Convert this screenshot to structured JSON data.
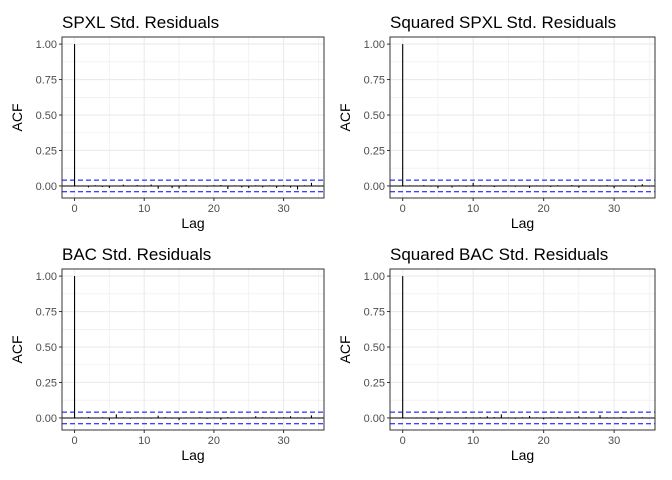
{
  "figure": {
    "type": "acf-grid",
    "panel_background": "#ffffff",
    "grid_color": "#ebebeb",
    "border_color": "#333333",
    "bar_color": "#000000",
    "ci_color": "#0000ff"
  },
  "chart_data": [
    {
      "type": "bar",
      "title": "SPXL Std. Residuals",
      "xlabel": "Lag",
      "ylabel": "ACF",
      "xlim": [
        -1.8,
        35.8
      ],
      "ylim": [
        -0.085,
        1.05
      ],
      "xticks": [
        0,
        10,
        20,
        30
      ],
      "yticks": [
        "0.00",
        "0.25",
        "0.50",
        "0.75",
        "1.00"
      ],
      "ci": [
        0.041,
        -0.041
      ],
      "grid": true,
      "x": [
        0,
        1,
        2,
        3,
        4,
        5,
        6,
        7,
        8,
        9,
        10,
        11,
        12,
        13,
        14,
        15,
        16,
        17,
        18,
        19,
        20,
        21,
        22,
        23,
        24,
        25,
        26,
        27,
        28,
        29,
        30,
        31,
        32,
        33,
        34
      ],
      "values": [
        1.0,
        -0.003,
        -0.01,
        0.005,
        -0.007,
        -0.014,
        0.002,
        0.009,
        -0.004,
        0.006,
        -0.005,
        0.01,
        -0.02,
        0.004,
        -0.015,
        -0.018,
        0.007,
        0.004,
        0.003,
        -0.006,
        0.005,
        0.006,
        -0.022,
        0.004,
        -0.01,
        -0.015,
        0.005,
        -0.01,
        0.004,
        -0.014,
        0.006,
        -0.012,
        -0.025,
        0.005,
        0.022
      ]
    },
    {
      "type": "bar",
      "title": "Squared SPXL Std. Residuals",
      "xlabel": "Lag",
      "ylabel": "ACF",
      "xlim": [
        -1.8,
        35.8
      ],
      "ylim": [
        -0.085,
        1.05
      ],
      "xticks": [
        0,
        10,
        20,
        30
      ],
      "yticks": [
        "0.00",
        "0.25",
        "0.50",
        "0.75",
        "1.00"
      ],
      "ci": [
        0.041,
        -0.041
      ],
      "grid": true,
      "x": [
        0,
        1,
        2,
        3,
        4,
        5,
        6,
        7,
        8,
        9,
        10,
        11,
        12,
        13,
        14,
        15,
        16,
        17,
        18,
        19,
        20,
        21,
        22,
        23,
        24,
        25,
        26,
        27,
        28,
        29,
        30,
        31,
        32,
        33,
        34
      ],
      "values": [
        1.0,
        0.004,
        0.003,
        0.006,
        -0.005,
        -0.016,
        0.002,
        -0.011,
        0.004,
        -0.006,
        0.022,
        0.005,
        0.003,
        -0.008,
        0.003,
        0.004,
        -0.006,
        0.002,
        -0.014,
        0.004,
        0.003,
        -0.007,
        0.005,
        -0.004,
        0.006,
        -0.013,
        0.003,
        0.004,
        -0.005,
        0.006,
        -0.016,
        0.004,
        0.003,
        -0.008,
        0.012
      ]
    },
    {
      "type": "bar",
      "title": "BAC Std. Residuals",
      "xlabel": "Lag",
      "ylabel": "ACF",
      "xlim": [
        -1.8,
        35.8
      ],
      "ylim": [
        -0.085,
        1.05
      ],
      "xticks": [
        0,
        10,
        20,
        30
      ],
      "yticks": [
        "0.00",
        "0.25",
        "0.50",
        "0.75",
        "1.00"
      ],
      "ci": [
        0.041,
        -0.041
      ],
      "grid": true,
      "x": [
        0,
        1,
        2,
        3,
        4,
        5,
        6,
        7,
        8,
        9,
        10,
        11,
        12,
        13,
        14,
        15,
        16,
        17,
        18,
        19,
        20,
        21,
        22,
        23,
        24,
        25,
        26,
        27,
        28,
        29,
        30,
        31,
        32,
        33,
        34
      ],
      "values": [
        1.0,
        0.004,
        0.006,
        -0.004,
        0.005,
        -0.018,
        0.025,
        0.005,
        -0.006,
        0.004,
        0.003,
        -0.005,
        0.016,
        0.006,
        -0.005,
        -0.016,
        0.004,
        0.003,
        0.005,
        -0.006,
        0.004,
        -0.013,
        0.006,
        0.004,
        -0.005,
        0.003,
        0.012,
        0.005,
        0.004,
        -0.006,
        0.005,
        0.012,
        0.004,
        -0.005,
        0.018
      ]
    },
    {
      "type": "bar",
      "title": "Squared BAC Std. Residuals",
      "xlabel": "Lag",
      "ylabel": "ACF",
      "xlim": [
        -1.8,
        35.8
      ],
      "ylim": [
        -0.085,
        1.05
      ],
      "xticks": [
        0,
        10,
        20,
        30
      ],
      "yticks": [
        "0.00",
        "0.25",
        "0.50",
        "0.75",
        "1.00"
      ],
      "ci": [
        0.041,
        -0.041
      ],
      "grid": true,
      "x": [
        0,
        1,
        2,
        3,
        4,
        5,
        6,
        7,
        8,
        9,
        10,
        11,
        12,
        13,
        14,
        15,
        16,
        17,
        18,
        19,
        20,
        21,
        22,
        23,
        24,
        25,
        26,
        27,
        28,
        29,
        30,
        31,
        32,
        33,
        34
      ],
      "values": [
        1.0,
        0.003,
        0.004,
        -0.005,
        0.004,
        -0.012,
        0.005,
        0.004,
        -0.004,
        0.006,
        0.004,
        0.005,
        0.012,
        0.006,
        0.025,
        0.004,
        -0.006,
        0.005,
        0.014,
        0.004,
        -0.009,
        0.005,
        0.006,
        -0.005,
        0.004,
        0.012,
        0.005,
        -0.004,
        0.02,
        0.005,
        0.004,
        0.006,
        -0.005,
        0.004,
        0.005
      ]
    }
  ]
}
